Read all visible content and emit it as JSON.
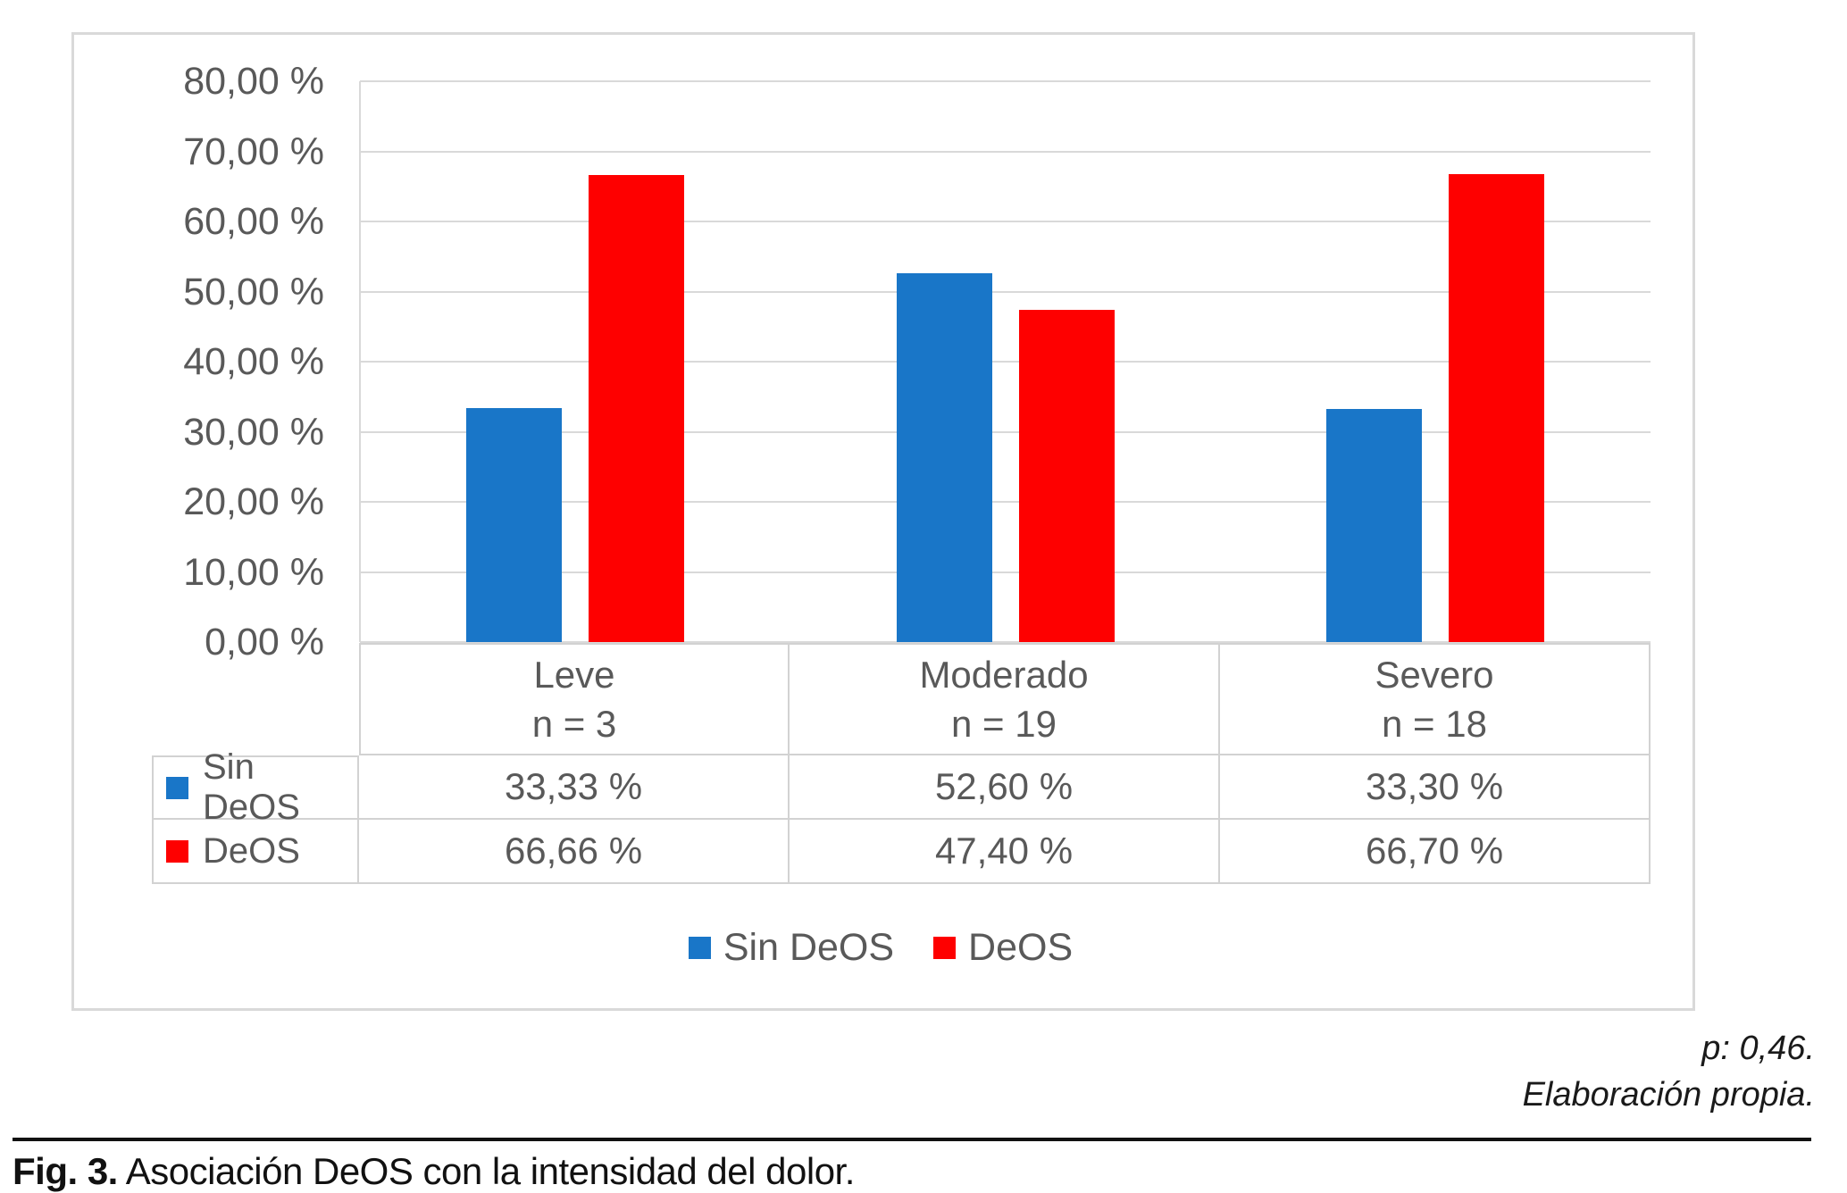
{
  "chart_data": {
    "type": "bar",
    "categories": [
      "Leve",
      "Moderado",
      "Severo"
    ],
    "category_counts": [
      "n = 3",
      "n = 19",
      "n = 18"
    ],
    "series": [
      {
        "name": "Sin DeOS",
        "color": "#1976c8",
        "values": [
          33.33,
          52.6,
          33.3
        ],
        "value_labels": [
          "33,33 %",
          "52,60 %",
          "33,30 %"
        ]
      },
      {
        "name": "DeOS",
        "color": "#fe0000",
        "values": [
          66.66,
          47.4,
          66.7
        ],
        "value_labels": [
          "66,66 %",
          "47,40 %",
          "66,70 %"
        ]
      }
    ],
    "y_axis": {
      "min": 0,
      "max": 80,
      "step": 10,
      "tick_labels": [
        "80,00 %",
        "70,00 %",
        "60,00 %",
        "50,00 %",
        "40,00 %",
        "30,00 %",
        "20,00 %",
        "10,00 %",
        "0,00 %"
      ]
    },
    "grid": true,
    "legend_position": "bottom",
    "title": "",
    "xlabel": "",
    "ylabel": ""
  },
  "annotations": {
    "p_value": "p: 0,46.",
    "source": "Elaboración propia."
  },
  "caption": {
    "label": "Fig. 3.",
    "text": "Asociación DeOS con la intensidad del dolor."
  }
}
